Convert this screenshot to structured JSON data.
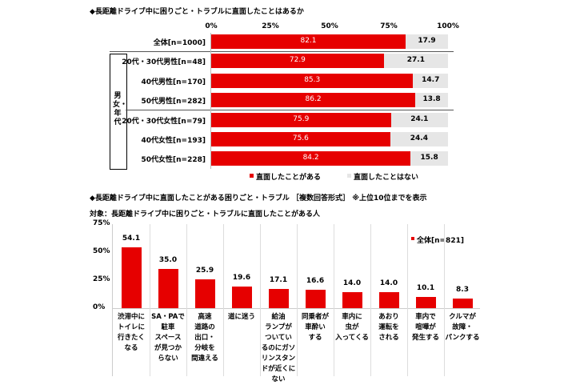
{
  "chart_data": [
    {
      "type": "bar",
      "orientation": "horizontal-stacked",
      "title": "◆長距離ドライブ中に困りごと・トラブルに直面したことはあるか",
      "xticks": [
        "0%",
        "25%",
        "50%",
        "75%",
        "100%"
      ],
      "xlim": [
        0,
        100
      ],
      "group_label": "男女・年代",
      "categories": [
        "全体[n=1000]",
        "20代・30代男性[n=48]",
        "40代男性[n=170]",
        "50代男性[n=282]",
        "20代・30代女性[n=79]",
        "40代女性[n=193]",
        "50代女性[n=228]"
      ],
      "series": [
        {
          "name": "直面したことがある",
          "color": "#e60000",
          "values": [
            82.1,
            72.9,
            85.3,
            86.2,
            75.9,
            75.6,
            84.2
          ]
        },
        {
          "name": "直面したことはない",
          "color": "#e6e6e6",
          "values": [
            17.9,
            27.1,
            14.7,
            13.8,
            24.1,
            24.4,
            15.8
          ]
        }
      ],
      "legend": "bottom"
    },
    {
      "type": "bar",
      "title": "◆長距離ドライブ中に直面したことがある困りごと・トラブル ［複数回答形式］ ※上位10位までを表示",
      "subtitle": "対象：長距離ドライブ中に困りごと・トラブルに直面したことがある人",
      "yticks": [
        "75%",
        "50%",
        "25%",
        "0%"
      ],
      "ylim": [
        0,
        75
      ],
      "categories": [
        "渋滞中にトイレに行きたくなる",
        "SA・PAで駐車スペースが見つからない",
        "高速道路の出口・分岐を間違える",
        "道に迷う",
        "給油ランプがついているのにガソリンスタンドが近くにない",
        "同乗者が車酔いする",
        "車内に虫が入ってくる",
        "あおり運転をされる",
        "車内で喧嘩が発生する",
        "クルマが故障・パンクする"
      ],
      "category_lines": [
        [
          "渋滞中に",
          "トイレに",
          "行きたく",
          "なる"
        ],
        [
          "SA・PAで",
          "駐車",
          "スペース",
          "が見つか",
          "らない"
        ],
        [
          "高速",
          "道路の",
          "出口・",
          "分岐を",
          "間違える"
        ],
        [
          "道に迷う"
        ],
        [
          "給油",
          "ランプが",
          "ついてい",
          "るのにガソ",
          "リンスタン",
          "ドが近くに",
          "ない"
        ],
        [
          "同乗者が",
          "車酔い",
          "する"
        ],
        [
          "車内に",
          "虫が",
          "入ってくる"
        ],
        [
          "あおり",
          "運転を",
          "される"
        ],
        [
          "車内で",
          "喧嘩が",
          "発生する"
        ],
        [
          "クルマが",
          "故障・",
          "パンクする"
        ]
      ],
      "series": [
        {
          "name": "全体[n=821]",
          "color": "#e60000",
          "values": [
            54.1,
            35.0,
            25.9,
            19.6,
            17.1,
            16.6,
            14.0,
            14.0,
            10.1,
            8.3
          ]
        }
      ],
      "value_labels": [
        "54.1",
        "35.0",
        "25.9",
        "19.6",
        "17.1",
        "16.6",
        "14.0",
        "14.0",
        "10.1",
        "8.3"
      ],
      "legend": "top-right"
    }
  ]
}
